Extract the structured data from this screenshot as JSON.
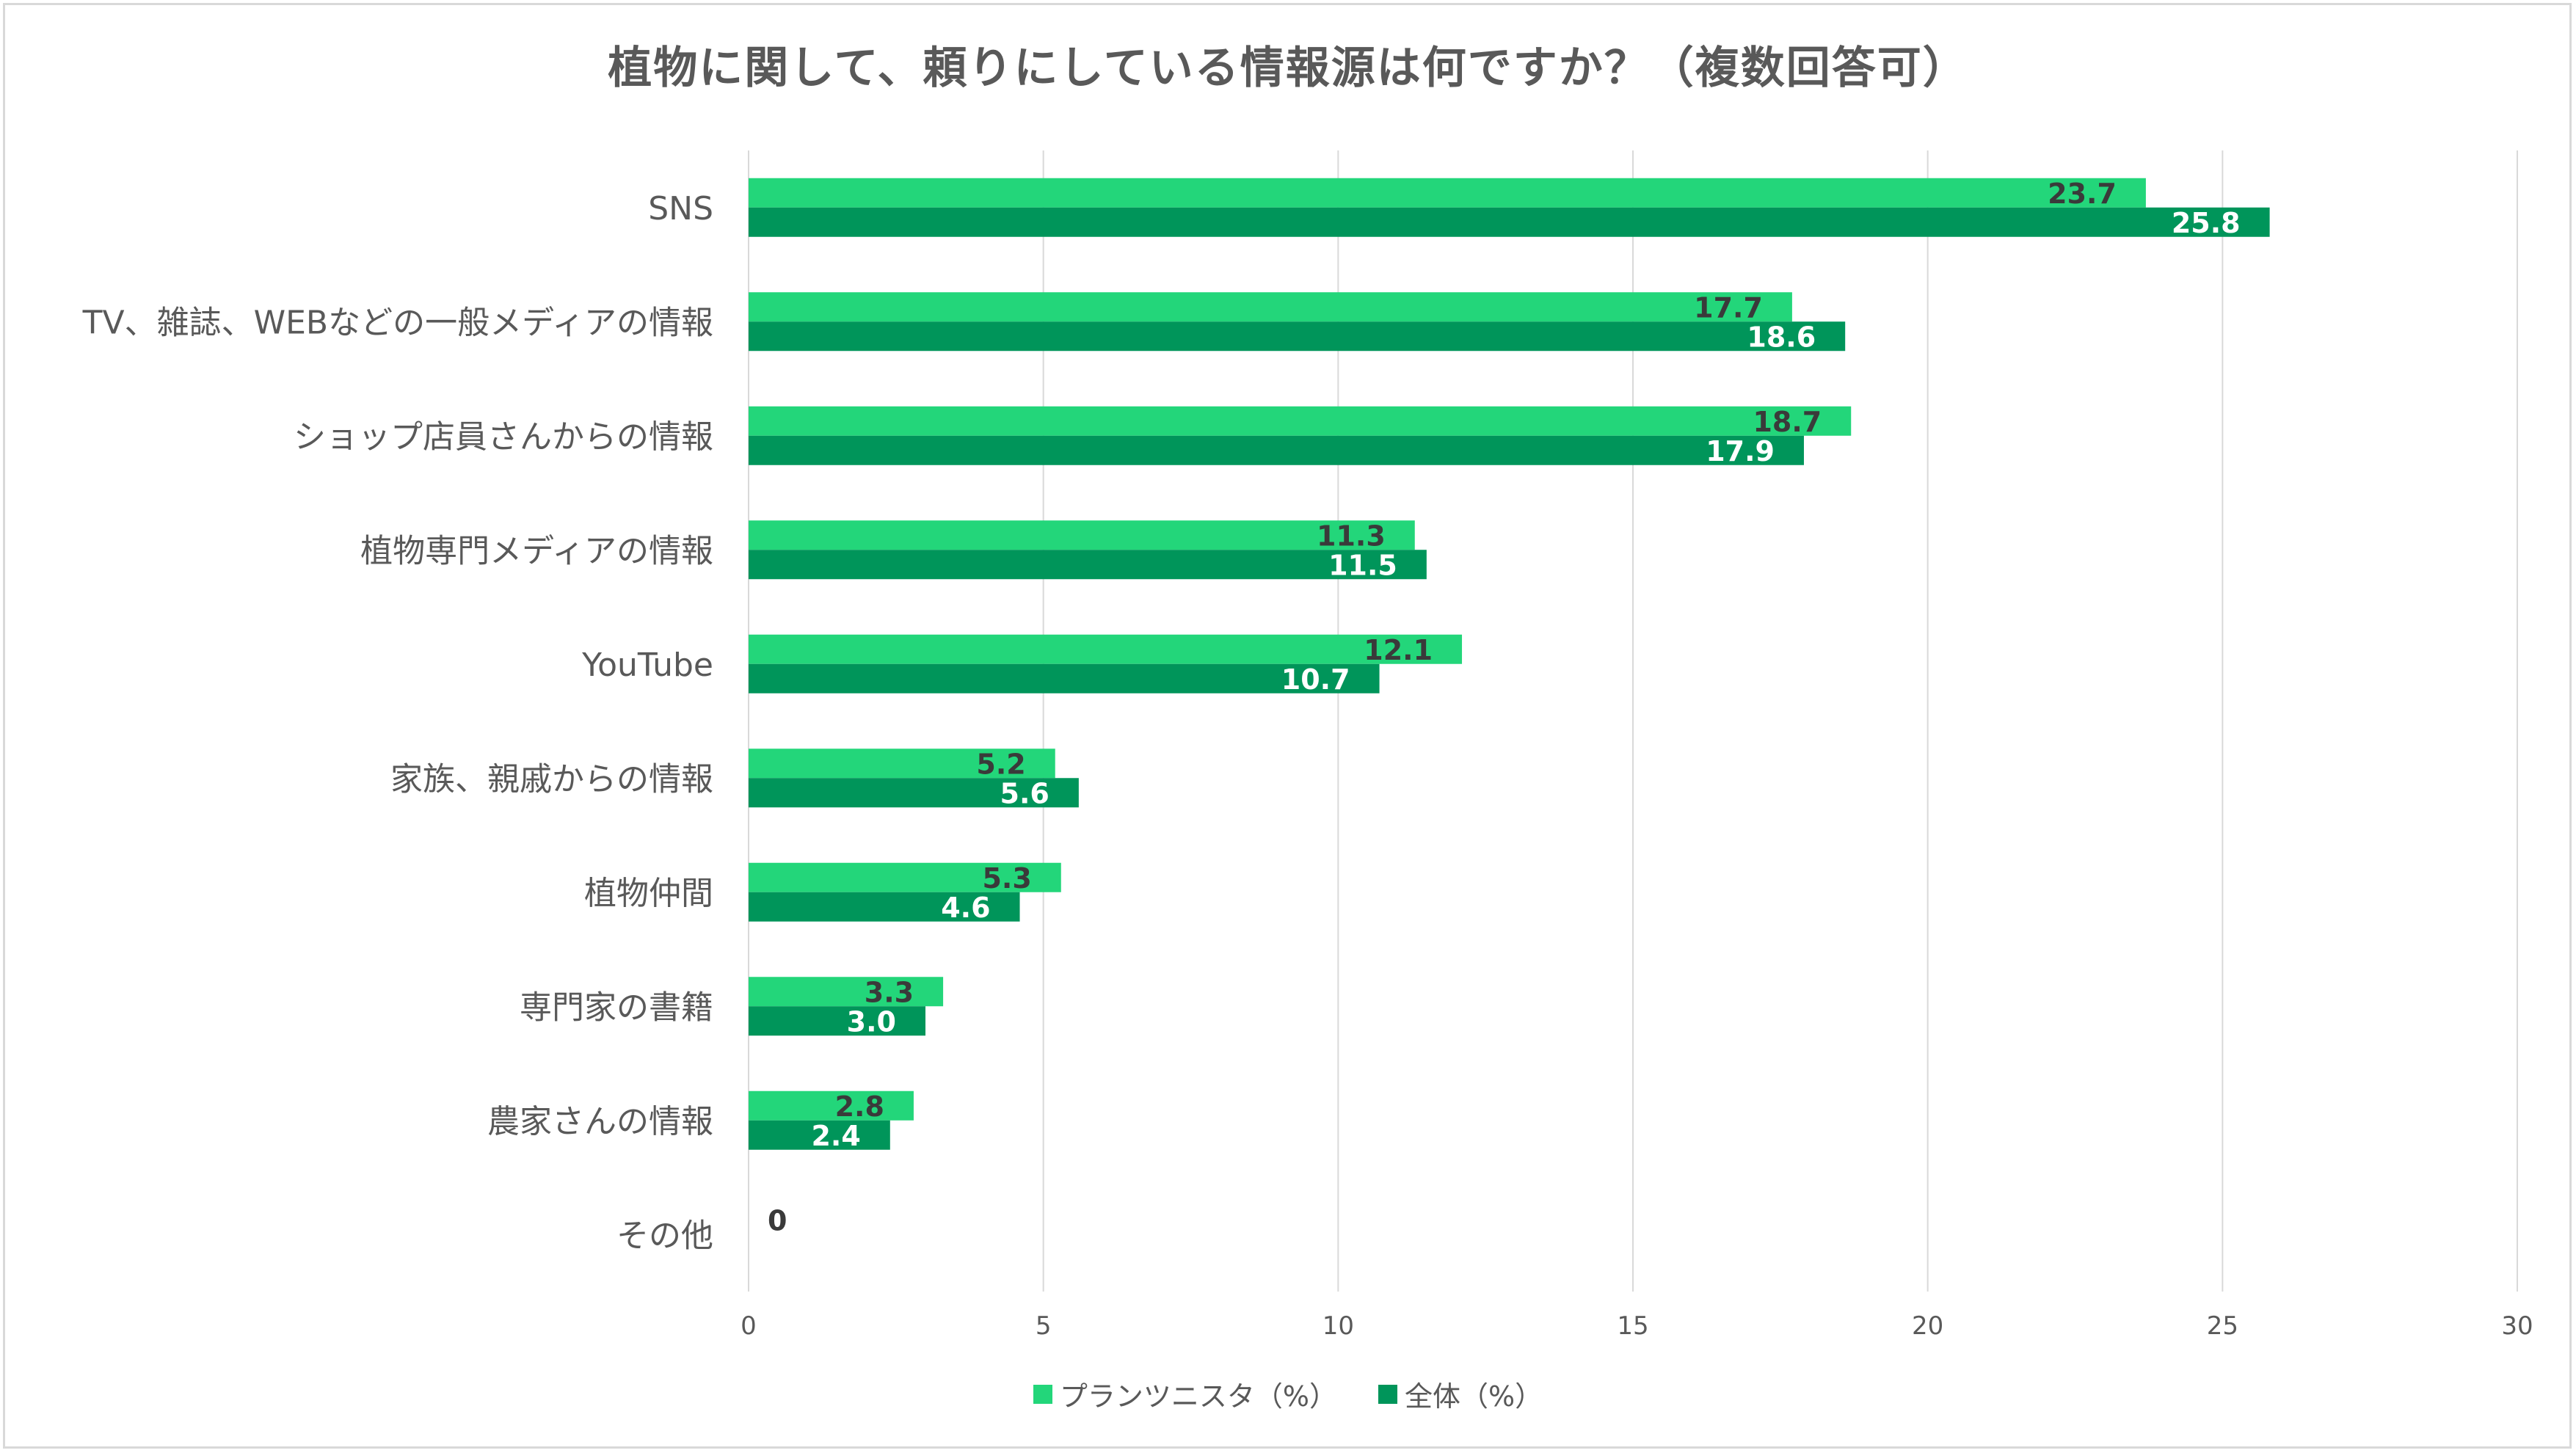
{
  "chart_data": {
    "type": "bar",
    "orientation": "horizontal",
    "title": "植物に関して、頼りにしている情報源は何ですか？（複数回答可）",
    "categories": [
      "SNS",
      "TV、雑誌、WEBなどの一般メディアの情報",
      "ショップ店員さんからの情報",
      "植物専門メディアの情報",
      "YouTube",
      "家族、親戚からの情報",
      "植物仲間",
      "専門家の書籍",
      "農家さんの情報",
      "その他"
    ],
    "series": [
      {
        "name": "プランツニスタ（%）",
        "color": "#23d67a",
        "label_color": "#3a3a3a",
        "values": [
          23.7,
          17.7,
          18.7,
          11.3,
          12.1,
          5.2,
          5.3,
          3.3,
          2.8,
          0
        ],
        "labels": [
          "23.7",
          "17.7",
          "18.7",
          "11.3",
          "12.1",
          "5.2",
          "5.3",
          "3.3",
          "2.8",
          "0"
        ]
      },
      {
        "name": "全体（%）",
        "color": "#00955a",
        "label_color": "#ffffff",
        "values": [
          25.8,
          18.6,
          17.9,
          11.5,
          10.7,
          5.6,
          4.6,
          3.0,
          2.4,
          0
        ],
        "labels": [
          "25.8",
          "18.6",
          "17.9",
          "11.5",
          "10.7",
          "5.6",
          "4.6",
          "3.0",
          "2.4",
          ""
        ]
      }
    ],
    "xlim": [
      0,
      30
    ],
    "x_ticks": [
      0,
      5,
      10,
      15,
      20,
      25,
      30
    ],
    "grid": "vertical",
    "legend_position": "bottom"
  }
}
